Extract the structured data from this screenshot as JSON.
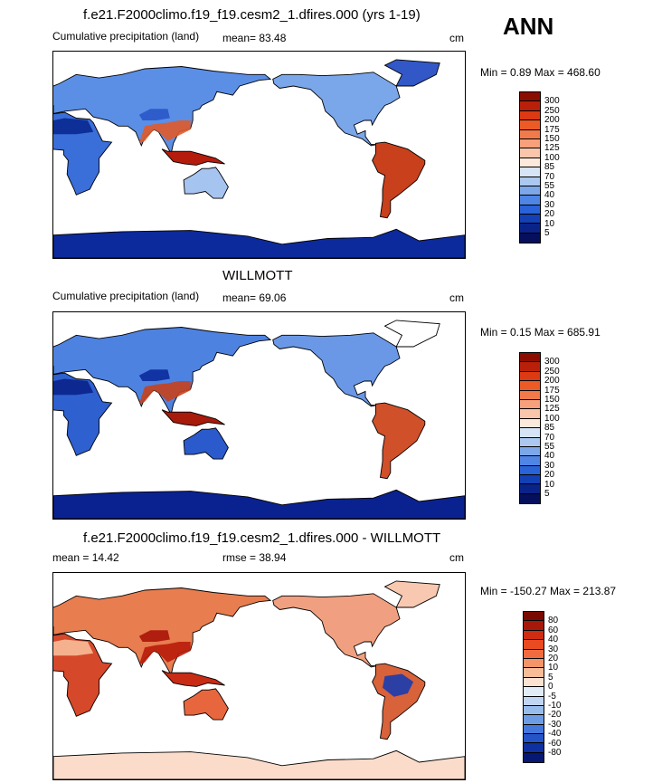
{
  "panels": [
    {
      "title": "f.e21.F2000climo.f19_f19.cesm2_1.dfires.000 (yrs 1-19)",
      "left_label": "Cumulative precipitation (land)",
      "mid_label": "mean=  83.48",
      "units": "cm",
      "minmax": "Min =   0.89 Max = 468.60",
      "colorbar_labels": [
        "300",
        "250",
        "200",
        "175",
        "150",
        "125",
        "100",
        "85",
        "70",
        "55",
        "40",
        "30",
        "20",
        "10",
        "5"
      ],
      "colorbar_colors": [
        "#8b0d00",
        "#b8200a",
        "#dc3a12",
        "#ec5a26",
        "#f27a4a",
        "#f6a07c",
        "#f9c6ab",
        "#fde9dc",
        "#d6e4f6",
        "#acc8f0",
        "#7ca8ea",
        "#4f85e4",
        "#2a62d8",
        "#1340b4",
        "#0a2388",
        "#060f5c"
      ]
    },
    {
      "title": "WILLMOTT",
      "left_label": "Cumulative precipitation (land)",
      "mid_label": "mean=  69.06",
      "units": "cm",
      "minmax": "Min =   0.15 Max = 685.91",
      "colorbar_labels": [
        "300",
        "250",
        "200",
        "175",
        "150",
        "125",
        "100",
        "85",
        "70",
        "55",
        "40",
        "30",
        "20",
        "10",
        "5"
      ],
      "colorbar_colors": [
        "#8b0d00",
        "#b8200a",
        "#dc3a12",
        "#ec5a26",
        "#f27a4a",
        "#f6a07c",
        "#f9c6ab",
        "#fde9dc",
        "#d6e4f6",
        "#acc8f0",
        "#7ca8ea",
        "#4f85e4",
        "#2a62d8",
        "#1340b4",
        "#0a2388",
        "#060f5c"
      ]
    },
    {
      "title": "f.e21.F2000climo.f19_f19.cesm2_1.dfires.000 - WILLMOTT",
      "left_label": "mean =  14.42",
      "mid_label": "rmse =  38.94",
      "units": "cm",
      "minmax": "Min = -150.27 Max = 213.87",
      "colorbar_labels": [
        "80",
        "60",
        "40",
        "30",
        "20",
        "10",
        "5",
        "0",
        "-5",
        "-10",
        "-20",
        "-30",
        "-40",
        "-60",
        "-80"
      ],
      "colorbar_colors": [
        "#7a0a00",
        "#a8180a",
        "#d02c12",
        "#e84a22",
        "#f06c40",
        "#f49468",
        "#f8bc98",
        "#fce2d2",
        "#e2ecf8",
        "#c0d6f2",
        "#98bcec",
        "#6e9ce4",
        "#4478dc",
        "#2454c8",
        "#0e30a0",
        "#061874"
      ]
    }
  ],
  "season": "ANN",
  "chart_data": [
    {
      "type": "heatmap",
      "title": "f.e21.F2000climo.f19_f19.cesm2_1.dfires.000 (yrs 1-19)",
      "variable": "Cumulative precipitation (land)",
      "units": "cm",
      "mean": 83.48,
      "min": 0.89,
      "max": 468.6,
      "levels": [
        5,
        10,
        20,
        30,
        40,
        55,
        70,
        85,
        100,
        125,
        150,
        175,
        200,
        250,
        300
      ],
      "season": "ANN"
    },
    {
      "type": "heatmap",
      "title": "WILLMOTT",
      "variable": "Cumulative precipitation (land)",
      "units": "cm",
      "mean": 69.06,
      "min": 0.15,
      "max": 685.91,
      "levels": [
        5,
        10,
        20,
        30,
        40,
        55,
        70,
        85,
        100,
        125,
        150,
        175,
        200,
        250,
        300
      ]
    },
    {
      "type": "heatmap",
      "title": "f.e21.F2000climo.f19_f19.cesm2_1.dfires.000 - WILLMOTT",
      "units": "cm",
      "mean": 14.42,
      "rmse": 38.94,
      "min": -150.27,
      "max": 213.87,
      "levels": [
        -80,
        -60,
        -40,
        -30,
        -20,
        -10,
        -5,
        0,
        5,
        10,
        20,
        30,
        40,
        60,
        80
      ]
    }
  ]
}
